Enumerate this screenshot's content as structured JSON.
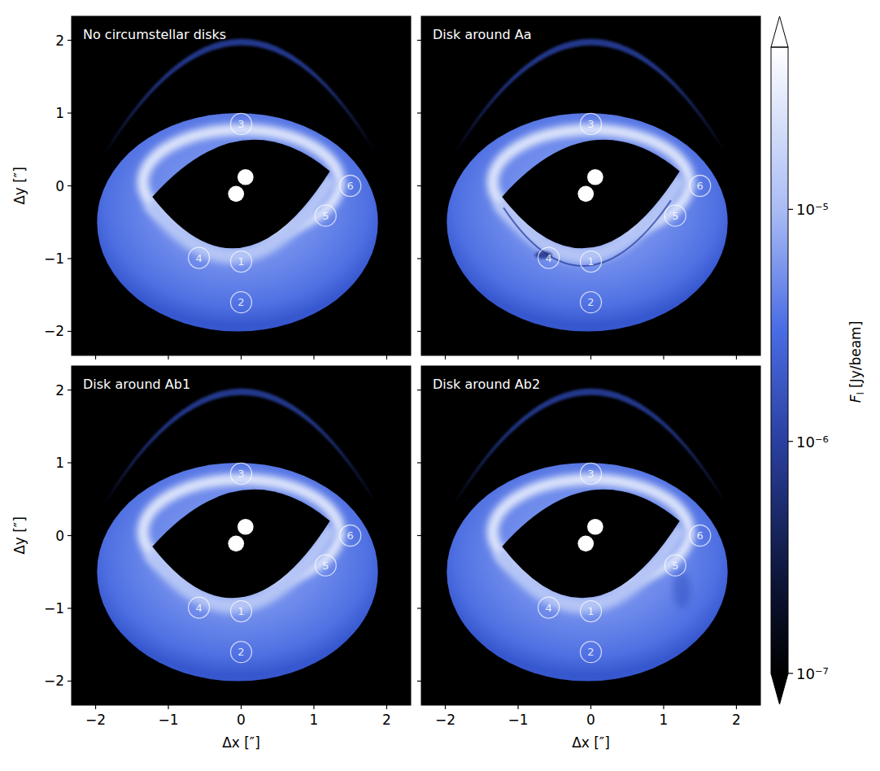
{
  "chart_data": {
    "type": "image",
    "panels": [
      {
        "title": "No circumstellar disks"
      },
      {
        "title": "Disk around Aa"
      },
      {
        "title": "Disk around Ab1"
      },
      {
        "title": "Disk around Ab2"
      }
    ],
    "xlabel": "Δx [″]",
    "ylabel": "Δy [″]",
    "xlim": [
      -2.33,
      2.33
    ],
    "ylim": [
      -2.33,
      2.33
    ],
    "xticks": [
      {
        "value": -2,
        "label": "−2"
      },
      {
        "value": -1,
        "label": "−1"
      },
      0,
      1,
      2
    ],
    "yticks": [
      {
        "value": -2,
        "label": "−2"
      },
      {
        "value": -1,
        "label": "−1"
      },
      0,
      1,
      2
    ],
    "markers": [
      {
        "label": "1",
        "x": 0.0,
        "y": -1.04
      },
      {
        "label": "2",
        "x": 0.0,
        "y": -1.6
      },
      {
        "label": "3",
        "x": 0.0,
        "y": 0.85
      },
      {
        "label": "4",
        "x": -0.58,
        "y": -0.99
      },
      {
        "label": "5",
        "x": 1.16,
        "y": -0.41
      },
      {
        "label": "6",
        "x": 1.5,
        "y": 0.0
      }
    ],
    "stars": [
      {
        "x": 0.06,
        "y": 0.12
      },
      {
        "x": -0.07,
        "y": -0.11
      }
    ],
    "colorbar": {
      "label": "F",
      "label_subscript": "I",
      "label_unit": "[Jy/beam]",
      "range": [
        1e-07,
        5e-05
      ],
      "log": true,
      "ticks": [
        {
          "value": 1e-07,
          "label": "10⁻⁷"
        },
        {
          "value": 1e-06,
          "label": "10⁻⁶"
        },
        {
          "value": 1e-05,
          "label": "10⁻⁵"
        }
      ]
    }
  }
}
